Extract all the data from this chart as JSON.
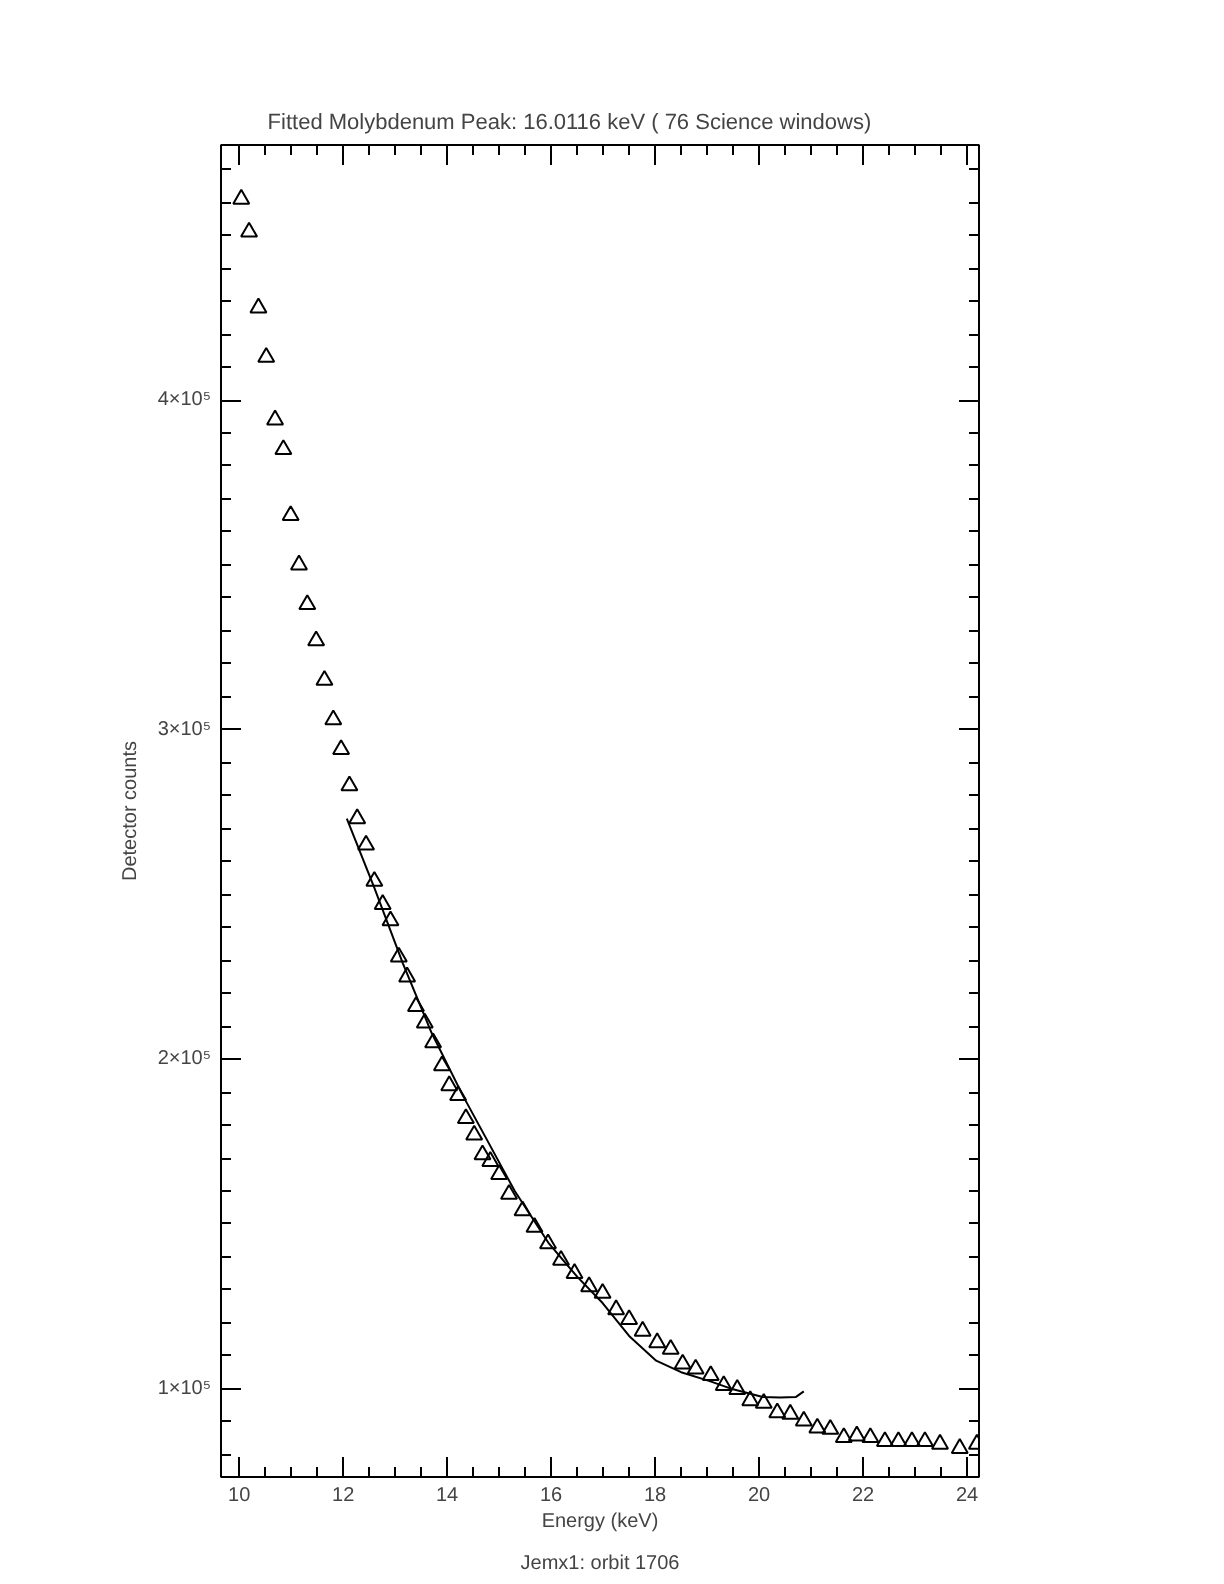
{
  "chart_data": {
    "type": "scatter",
    "title": "Fitted Molybdenum Peak:      16.0116 keV (      76 Science windows)",
    "xlabel": "Energy (keV)",
    "ylabel": "Detector counts",
    "annotations": [
      "Jemx1: orbit 1706"
    ],
    "xlim": [
      9.65,
      24.23
    ],
    "ylim": [
      73200,
      477400
    ],
    "xticks": [
      10,
      12,
      14,
      16,
      18,
      20,
      22,
      24
    ],
    "yticks": [
      {
        "value": 100000,
        "label": "1×10⁵"
      },
      {
        "value": 200000,
        "label": "2×10⁵"
      },
      {
        "value": 300000,
        "label": "3×10⁵"
      },
      {
        "value": 400000,
        "label": "4×10⁵"
      }
    ],
    "grid": false,
    "series": [
      {
        "color": "#000000",
        "marker": "triangle",
        "x": [
          10.04,
          10.19,
          10.37,
          10.52,
          10.69,
          10.85,
          10.99,
          11.15,
          11.31,
          11.48,
          11.64,
          11.81,
          11.96,
          12.12,
          12.27,
          12.44,
          12.6,
          12.76,
          12.91,
          13.07,
          13.23,
          13.4,
          13.57,
          13.73,
          13.9,
          14.04,
          14.21,
          14.36,
          14.52,
          14.68,
          14.83,
          15.0,
          15.19,
          15.45,
          15.68,
          15.94,
          16.19,
          16.45,
          16.73,
          16.99,
          17.25,
          17.5,
          17.76,
          18.04,
          18.3,
          18.53,
          18.78,
          19.07,
          19.32,
          19.58,
          19.83,
          20.09,
          20.35,
          20.6,
          20.86,
          21.12,
          21.37,
          21.63,
          21.88,
          22.14,
          22.42,
          22.68,
          22.94,
          23.19,
          23.48,
          23.86,
          24.19
        ],
        "values": [
          461000,
          451000,
          428000,
          413000,
          394000,
          385000,
          365000,
          350000,
          338000,
          327000,
          315000,
          303000,
          294000,
          283000,
          273000,
          265000,
          254000,
          247000,
          242000,
          231000,
          225000,
          216000,
          211000,
          205000,
          198000,
          192000,
          189000,
          182000,
          177000,
          171000,
          169000,
          165000,
          159000,
          154000,
          149000,
          144000,
          139000,
          135000,
          131000,
          129000,
          124000,
          121000,
          117500,
          114000,
          112000,
          107500,
          106000,
          104000,
          101000,
          99800,
          96400,
          95600,
          92700,
          92300,
          90200,
          88100,
          87700,
          85200,
          85700,
          85200,
          84000,
          84000,
          84000,
          84000,
          83200,
          81900,
          83200
        ]
      },
      {
        "type": "line",
        "color": "#000000",
        "line_style": "solid",
        "marker": "none",
        "x": [
          12.07,
          12.6,
          13.15,
          13.7,
          14.3,
          14.68,
          15.3,
          15.96,
          16.5,
          16.99,
          17.5,
          18.02,
          18.5,
          19.05,
          19.5,
          20.07,
          20.4,
          20.71,
          20.86
        ],
        "values": [
          273000,
          252000,
          229000,
          208000,
          189000,
          178000,
          160000,
          144000,
          134000,
          126000,
          116000,
          108500,
          105000,
          102300,
          99800,
          97500,
          97300,
          97500,
          99200
        ]
      }
    ]
  }
}
